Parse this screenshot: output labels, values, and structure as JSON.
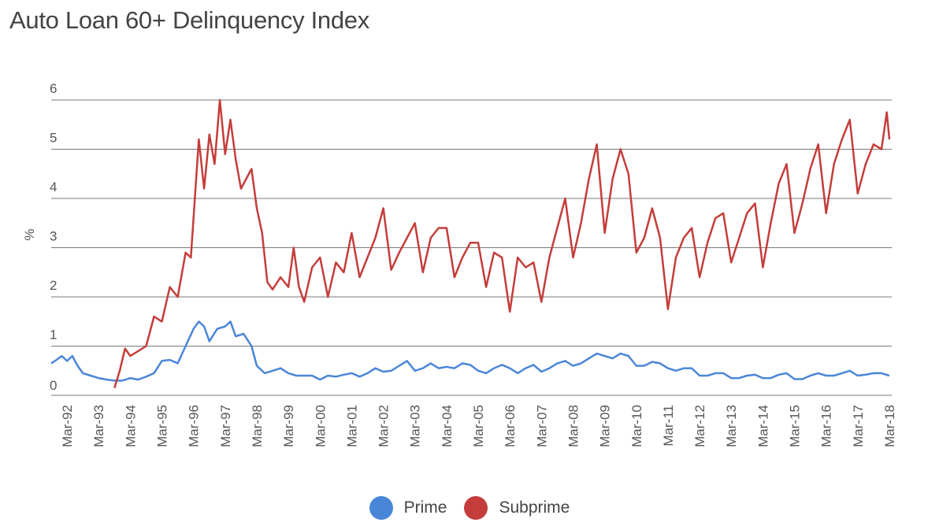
{
  "title": "Auto Loan 60+ Delinquency Index",
  "colors": {
    "prime": "#4a86d8",
    "subprime": "#c43d3a",
    "grid": "#7a7a7a"
  },
  "chart_data": {
    "type": "line",
    "title": "Auto Loan 60+ Delinquency Index",
    "xlabel": "",
    "ylabel": "%",
    "ylim": [
      0,
      6
    ],
    "yticks": [
      0,
      1,
      2,
      3,
      4,
      5,
      6
    ],
    "xlim": [
      "1991-09",
      "2018-03"
    ],
    "xticks": [
      "Mar-92",
      "Mar-93",
      "Mar-94",
      "Mar-95",
      "Mar-96",
      "Mar-97",
      "Mar-98",
      "Mar-99",
      "Mar-00",
      "Mar-01",
      "Mar-02",
      "Mar-03",
      "Mar-04",
      "Mar-05",
      "Mar-06",
      "Mar-07",
      "Mar-08",
      "Mar-09",
      "Mar-10",
      "Mar-11",
      "Mar-12",
      "Mar-13",
      "Mar-14",
      "Mar-15",
      "Mar-16",
      "Mar-17",
      "Mar-18"
    ],
    "grid": true,
    "legend_position": "bottom-center",
    "series": [
      {
        "name": "Prime",
        "color": "#4a86d8",
        "points": [
          [
            "1991-09",
            0.65
          ],
          [
            "1991-11",
            0.72
          ],
          [
            "1992-01",
            0.8
          ],
          [
            "1992-03",
            0.7
          ],
          [
            "1992-05",
            0.8
          ],
          [
            "1992-07",
            0.6
          ],
          [
            "1992-09",
            0.45
          ],
          [
            "1992-12",
            0.4
          ],
          [
            "1993-03",
            0.35
          ],
          [
            "1993-06",
            0.32
          ],
          [
            "1993-09",
            0.3
          ],
          [
            "1993-12",
            0.3
          ],
          [
            "1994-03",
            0.35
          ],
          [
            "1994-06",
            0.32
          ],
          [
            "1994-09",
            0.38
          ],
          [
            "1994-12",
            0.45
          ],
          [
            "1995-03",
            0.7
          ],
          [
            "1995-06",
            0.72
          ],
          [
            "1995-09",
            0.65
          ],
          [
            "1995-12",
            1.0
          ],
          [
            "1996-03",
            1.35
          ],
          [
            "1996-05",
            1.5
          ],
          [
            "1996-07",
            1.4
          ],
          [
            "1996-09",
            1.1
          ],
          [
            "1996-12",
            1.35
          ],
          [
            "1997-03",
            1.4
          ],
          [
            "1997-05",
            1.5
          ],
          [
            "1997-07",
            1.2
          ],
          [
            "1997-10",
            1.25
          ],
          [
            "1998-01",
            1.0
          ],
          [
            "1998-03",
            0.6
          ],
          [
            "1998-06",
            0.45
          ],
          [
            "1998-09",
            0.5
          ],
          [
            "1998-12",
            0.55
          ],
          [
            "1999-03",
            0.45
          ],
          [
            "1999-06",
            0.4
          ],
          [
            "1999-09",
            0.4
          ],
          [
            "1999-12",
            0.4
          ],
          [
            "2000-03",
            0.32
          ],
          [
            "2000-06",
            0.4
          ],
          [
            "2000-09",
            0.38
          ],
          [
            "2000-12",
            0.42
          ],
          [
            "2001-03",
            0.45
          ],
          [
            "2001-06",
            0.38
          ],
          [
            "2001-09",
            0.45
          ],
          [
            "2001-12",
            0.55
          ],
          [
            "2002-03",
            0.48
          ],
          [
            "2002-06",
            0.5
          ],
          [
            "2002-09",
            0.6
          ],
          [
            "2002-12",
            0.7
          ],
          [
            "2003-03",
            0.5
          ],
          [
            "2003-06",
            0.55
          ],
          [
            "2003-09",
            0.65
          ],
          [
            "2003-12",
            0.55
          ],
          [
            "2004-03",
            0.58
          ],
          [
            "2004-06",
            0.55
          ],
          [
            "2004-09",
            0.65
          ],
          [
            "2004-12",
            0.62
          ],
          [
            "2005-03",
            0.5
          ],
          [
            "2005-06",
            0.45
          ],
          [
            "2005-09",
            0.55
          ],
          [
            "2005-12",
            0.62
          ],
          [
            "2006-03",
            0.55
          ],
          [
            "2006-06",
            0.45
          ],
          [
            "2006-09",
            0.55
          ],
          [
            "2006-12",
            0.62
          ],
          [
            "2007-03",
            0.48
          ],
          [
            "2007-06",
            0.55
          ],
          [
            "2007-09",
            0.65
          ],
          [
            "2007-12",
            0.7
          ],
          [
            "2008-03",
            0.6
          ],
          [
            "2008-06",
            0.65
          ],
          [
            "2008-09",
            0.75
          ],
          [
            "2008-12",
            0.85
          ],
          [
            "2009-03",
            0.8
          ],
          [
            "2009-06",
            0.75
          ],
          [
            "2009-09",
            0.85
          ],
          [
            "2009-12",
            0.8
          ],
          [
            "2010-03",
            0.6
          ],
          [
            "2010-06",
            0.6
          ],
          [
            "2010-09",
            0.68
          ],
          [
            "2010-12",
            0.65
          ],
          [
            "2011-03",
            0.55
          ],
          [
            "2011-06",
            0.5
          ],
          [
            "2011-09",
            0.55
          ],
          [
            "2011-12",
            0.55
          ],
          [
            "2012-03",
            0.4
          ],
          [
            "2012-06",
            0.4
          ],
          [
            "2012-09",
            0.45
          ],
          [
            "2012-12",
            0.45
          ],
          [
            "2013-03",
            0.35
          ],
          [
            "2013-06",
            0.35
          ],
          [
            "2013-09",
            0.4
          ],
          [
            "2013-12",
            0.42
          ],
          [
            "2014-03",
            0.35
          ],
          [
            "2014-06",
            0.35
          ],
          [
            "2014-09",
            0.42
          ],
          [
            "2014-12",
            0.45
          ],
          [
            "2015-03",
            0.33
          ],
          [
            "2015-06",
            0.33
          ],
          [
            "2015-09",
            0.4
          ],
          [
            "2015-12",
            0.45
          ],
          [
            "2016-03",
            0.4
          ],
          [
            "2016-06",
            0.4
          ],
          [
            "2016-09",
            0.45
          ],
          [
            "2016-12",
            0.5
          ],
          [
            "2017-03",
            0.4
          ],
          [
            "2017-06",
            0.42
          ],
          [
            "2017-09",
            0.45
          ],
          [
            "2017-12",
            0.45
          ],
          [
            "2018-03",
            0.4
          ]
        ]
      },
      {
        "name": "Subprime",
        "color": "#c43d3a",
        "points": [
          [
            "1993-09",
            0.15
          ],
          [
            "1993-11",
            0.5
          ],
          [
            "1994-01",
            0.95
          ],
          [
            "1994-03",
            0.8
          ],
          [
            "1994-06",
            0.9
          ],
          [
            "1994-09",
            1.0
          ],
          [
            "1994-12",
            1.6
          ],
          [
            "1995-03",
            1.5
          ],
          [
            "1995-06",
            2.2
          ],
          [
            "1995-09",
            2.0
          ],
          [
            "1995-12",
            2.9
          ],
          [
            "1996-02",
            2.8
          ],
          [
            "1996-05",
            5.2
          ],
          [
            "1996-07",
            4.2
          ],
          [
            "1996-09",
            5.3
          ],
          [
            "1996-11",
            4.7
          ],
          [
            "1997-01",
            6.0
          ],
          [
            "1997-03",
            4.9
          ],
          [
            "1997-05",
            5.6
          ],
          [
            "1997-07",
            4.8
          ],
          [
            "1997-09",
            4.2
          ],
          [
            "1997-11",
            4.4
          ],
          [
            "1998-01",
            4.6
          ],
          [
            "1998-03",
            3.8
          ],
          [
            "1998-05",
            3.3
          ],
          [
            "1998-07",
            2.3
          ],
          [
            "1998-09",
            2.15
          ],
          [
            "1998-12",
            2.4
          ],
          [
            "1999-03",
            2.2
          ],
          [
            "1999-05",
            3.0
          ],
          [
            "1999-07",
            2.2
          ],
          [
            "1999-09",
            1.9
          ],
          [
            "1999-12",
            2.6
          ],
          [
            "2000-03",
            2.8
          ],
          [
            "2000-06",
            2.0
          ],
          [
            "2000-09",
            2.7
          ],
          [
            "2000-12",
            2.5
          ],
          [
            "2001-03",
            3.3
          ],
          [
            "2001-06",
            2.4
          ],
          [
            "2001-09",
            2.8
          ],
          [
            "2001-12",
            3.2
          ],
          [
            "2002-03",
            3.8
          ],
          [
            "2002-06",
            2.55
          ],
          [
            "2002-09",
            2.9
          ],
          [
            "2002-12",
            3.2
          ],
          [
            "2003-03",
            3.5
          ],
          [
            "2003-06",
            2.5
          ],
          [
            "2003-09",
            3.2
          ],
          [
            "2003-12",
            3.4
          ],
          [
            "2004-03",
            3.4
          ],
          [
            "2004-06",
            2.4
          ],
          [
            "2004-09",
            2.8
          ],
          [
            "2004-12",
            3.1
          ],
          [
            "2005-03",
            3.1
          ],
          [
            "2005-06",
            2.2
          ],
          [
            "2005-09",
            2.9
          ],
          [
            "2005-12",
            2.8
          ],
          [
            "2006-03",
            1.7
          ],
          [
            "2006-06",
            2.8
          ],
          [
            "2006-09",
            2.6
          ],
          [
            "2006-12",
            2.7
          ],
          [
            "2007-03",
            1.9
          ],
          [
            "2007-06",
            2.8
          ],
          [
            "2007-09",
            3.4
          ],
          [
            "2007-12",
            4.0
          ],
          [
            "2008-03",
            2.8
          ],
          [
            "2008-06",
            3.5
          ],
          [
            "2008-09",
            4.4
          ],
          [
            "2008-12",
            5.1
          ],
          [
            "2009-03",
            3.3
          ],
          [
            "2009-06",
            4.4
          ],
          [
            "2009-09",
            5.0
          ],
          [
            "2009-12",
            4.5
          ],
          [
            "2010-03",
            2.9
          ],
          [
            "2010-06",
            3.2
          ],
          [
            "2010-09",
            3.8
          ],
          [
            "2010-12",
            3.2
          ],
          [
            "2011-03",
            1.75
          ],
          [
            "2011-06",
            2.8
          ],
          [
            "2011-09",
            3.2
          ],
          [
            "2011-12",
            3.4
          ],
          [
            "2012-03",
            2.4
          ],
          [
            "2012-06",
            3.1
          ],
          [
            "2012-09",
            3.6
          ],
          [
            "2012-12",
            3.7
          ],
          [
            "2013-03",
            2.7
          ],
          [
            "2013-06",
            3.2
          ],
          [
            "2013-09",
            3.7
          ],
          [
            "2013-12",
            3.9
          ],
          [
            "2014-03",
            2.6
          ],
          [
            "2014-06",
            3.5
          ],
          [
            "2014-09",
            4.3
          ],
          [
            "2014-12",
            4.7
          ],
          [
            "2015-03",
            3.3
          ],
          [
            "2015-06",
            3.9
          ],
          [
            "2015-09",
            4.6
          ],
          [
            "2015-12",
            5.1
          ],
          [
            "2016-03",
            3.7
          ],
          [
            "2016-06",
            4.7
          ],
          [
            "2016-09",
            5.2
          ],
          [
            "2016-12",
            5.6
          ],
          [
            "2017-03",
            4.1
          ],
          [
            "2017-06",
            4.7
          ],
          [
            "2017-09",
            5.1
          ],
          [
            "2017-12",
            5.0
          ],
          [
            "2018-02",
            5.75
          ],
          [
            "2018-03",
            5.2
          ]
        ]
      }
    ]
  }
}
